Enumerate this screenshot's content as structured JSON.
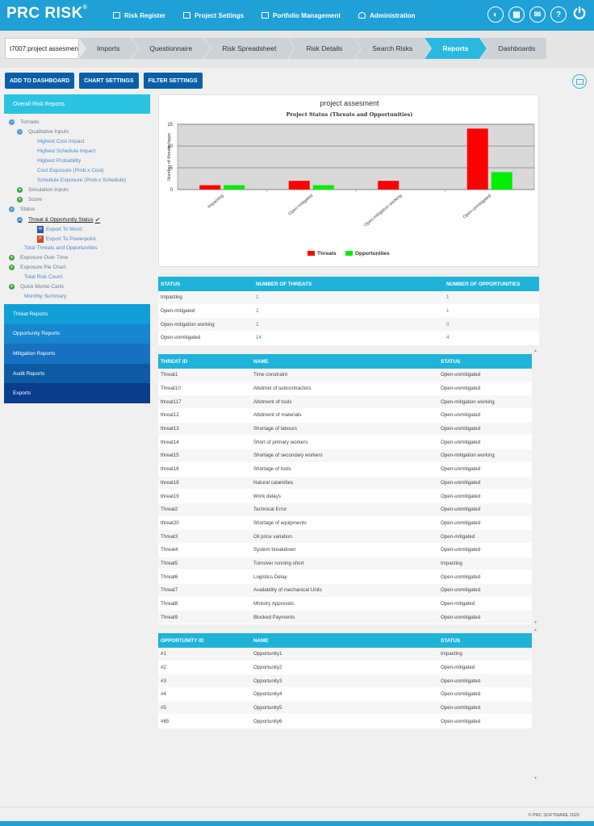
{
  "app": {
    "logo_text": "PRC RISK",
    "logo_mark": "®"
  },
  "topnav": [
    {
      "label": "Risk Register",
      "icon": "grid-icon"
    },
    {
      "label": "Project Settings",
      "icon": "settings-icon"
    },
    {
      "label": "Portfolio Management",
      "icon": "folder-icon"
    },
    {
      "label": "Administration",
      "icon": "user-icon"
    }
  ],
  "topicons": [
    {
      "name": "toggle-icon",
      "glyph": "◐"
    },
    {
      "name": "calendar-icon",
      "glyph": "▦"
    },
    {
      "name": "mail-icon",
      "glyph": "✉"
    },
    {
      "name": "help-icon",
      "glyph": "?"
    },
    {
      "name": "power-icon",
      "glyph": "⏻"
    }
  ],
  "breadcrumb": {
    "project": "t7007:project assesmen",
    "steps": [
      "Imports",
      "Questionnaire",
      "Risk Spreadsheet",
      "Risk Details",
      "Search Risks",
      "Reports",
      "Dashboards"
    ],
    "active": "Reports"
  },
  "actions": {
    "add_dashboard": "ADD TO DASHBOARD",
    "chart_settings": "CHART SETTINGS",
    "filter_settings": "FILTER SETTINGS"
  },
  "sidebar": {
    "header": "Overall Risk Reports",
    "tree": {
      "tornado": "Tornado",
      "qualitative": "Qualitative Inputs",
      "highest_cost": "Highest Cost Impact",
      "highest_schedule": "Highest Schedule Impact",
      "highest_prob": "Highest Probability",
      "cost_exposure": "Cost Exposure (Prob.x Cost)",
      "schedule_exposure": "Schedule Exposure (Prob.x Schedule)",
      "simulation": "Simulation Inputs",
      "score": "Score",
      "status": "Status",
      "threat_opp_status": "Threat & Opportunity Status",
      "check": "✔",
      "export_word": "Export To Word",
      "export_ppt": "Export To Powerpoint",
      "total_threats_opps": "Total Threats and Opportunities",
      "exposure_time": "Exposure Over Time",
      "exposure_pie": "Exposure Pie Chart",
      "total_risk": "Total Risk Count",
      "monte_carlo": "Quick Monte Carlo",
      "monthly": "Monthly Summary"
    },
    "sections": [
      {
        "label": "Threat Reports",
        "color": "#0f9fd8"
      },
      {
        "label": "Opportunity Reports",
        "color": "#1886d0"
      },
      {
        "label": "Mitigation Reports",
        "color": "#1770c0"
      },
      {
        "label": "Audit Reports",
        "color": "#0d5aa4"
      },
      {
        "label": "Exports",
        "color": "#0a3d8c"
      }
    ]
  },
  "chart_data": {
    "type": "bar",
    "title": "project assesment",
    "subtitle": "Project Status (Threats and Opportunities)",
    "ylabel": "Number of threats /opps",
    "xlabel": "",
    "ylim": [
      0,
      15
    ],
    "yticks": [
      0,
      5,
      10,
      15
    ],
    "categories": [
      "Impacting",
      "Open-mitigated",
      "Open-mitigation working",
      "Open-unmitigated"
    ],
    "series": [
      {
        "name": "Threats",
        "color": "#ff0000",
        "values": [
          1,
          2,
          2,
          14
        ]
      },
      {
        "name": "Opportunities",
        "color": "#00ee00",
        "values": [
          1,
          1,
          0,
          4
        ]
      }
    ],
    "legend": "bottom-center"
  },
  "status_table": {
    "headers": [
      "STATUS",
      "NUMBER OF THREATS",
      "NUMBER OF OPPORTUNITIES"
    ],
    "rows": [
      [
        "Impacting",
        "1",
        "1"
      ],
      [
        "Open-mitigated",
        "2",
        "1"
      ],
      [
        "Open-mitigation working",
        "2",
        "0"
      ],
      [
        "Open-unmitigated",
        "14",
        "4"
      ]
    ]
  },
  "threat_table": {
    "headers": [
      "THREAT ID",
      "NAME",
      "STATUS"
    ],
    "rows": [
      [
        "Threat1",
        "Time constraint",
        "Open-unmitigated"
      ],
      [
        "Threat10",
        "Allotmet of subcontractors",
        "Open-unmitigated"
      ],
      [
        "threat117",
        "Allotment of tools",
        "Open-mitigation working"
      ],
      [
        "threat12",
        "Allotment of materials",
        "Open-unmitigated"
      ],
      [
        "threat13",
        "Shortage of labours",
        "Open-unmitigated"
      ],
      [
        "threat14",
        "Short of primary workers",
        "Open-unmitigated"
      ],
      [
        "threat15",
        "Shortage of secondary workers",
        "Open-mitigation working"
      ],
      [
        "threat16",
        "Shortage of tools",
        "Open-unmitigated"
      ],
      [
        "threat18",
        "Natural calamities",
        "Open-unmitigated"
      ],
      [
        "threat19",
        "Work delays",
        "Open-unmitigated"
      ],
      [
        "Threat2",
        "Technical Error",
        "Open-unmitigated"
      ],
      [
        "threat20",
        "Shortage of equipments",
        "Open-unmitigated"
      ],
      [
        "Threat3",
        "Oil price variation",
        "Open-mitigated"
      ],
      [
        "Threat4",
        "System breakdown",
        "Open-unmitigated"
      ],
      [
        "Threat5",
        "Turnover running short",
        "Impacting"
      ],
      [
        "Threat6",
        "Logistics Delay",
        "Open-unmitigated"
      ],
      [
        "Threat7",
        "Availability of mechanical Units",
        "Open-unmitigated"
      ],
      [
        "Threat8",
        "Ministry Approvals",
        "Open-mitigated"
      ],
      [
        "Threat9",
        "Blocked Payments",
        "Open-unmitigated"
      ]
    ]
  },
  "opp_table": {
    "headers": [
      "OPPORTUNITY ID",
      "NAME",
      "STATUS"
    ],
    "rows": [
      [
        "#1",
        "Opportunity1",
        "Impacting"
      ],
      [
        "#2",
        "Opportunity2",
        "Open-mitigated"
      ],
      [
        "#3",
        "Opportunity3",
        "Open-unmitigated"
      ],
      [
        "#4",
        "Opportunity4",
        "Open-unmitigated"
      ],
      [
        "#5",
        "Opportunity5",
        "Open-unmitigated"
      ],
      [
        "#65",
        "Opportunity6",
        "Open-unmitigated"
      ]
    ]
  },
  "footer": {
    "copyright": "© PRC SOFTWARE 2020"
  }
}
